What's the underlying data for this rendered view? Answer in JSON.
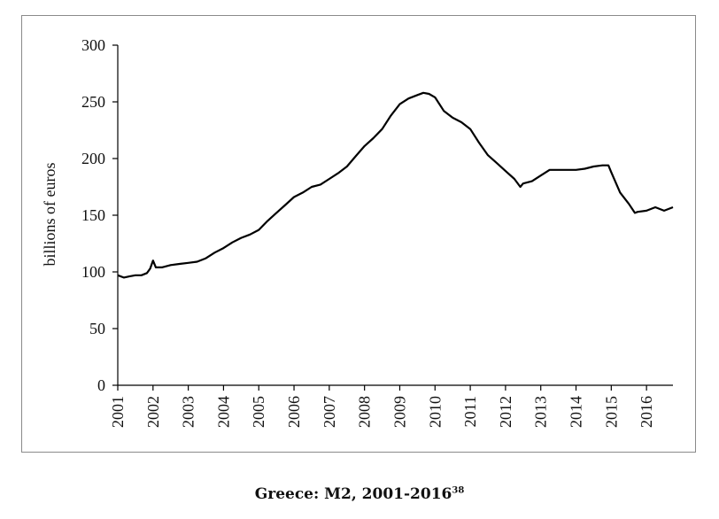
{
  "caption": {
    "title": "Greece: M2, 2001-2016",
    "footnote_marker": "38"
  },
  "chart_data": {
    "type": "line",
    "title": "",
    "xlabel": "",
    "ylabel": "billions of euros",
    "ylim": [
      0,
      300
    ],
    "yticks": [
      0,
      50,
      100,
      150,
      200,
      250,
      300
    ],
    "xlim": [
      2001.0,
      2016.75
    ],
    "xticks": [
      "2001",
      "2002",
      "2003",
      "2004",
      "2005",
      "2006",
      "2007",
      "2008",
      "2009",
      "2010",
      "2011",
      "2012",
      "2013",
      "2014",
      "2015",
      "2016"
    ],
    "grid": false,
    "legend": "none",
    "line_color": "#000000",
    "series": [
      {
        "x": [
          2001.0,
          2001.17,
          2001.33,
          2001.5,
          2001.67,
          2001.83,
          2001.92,
          2002.0,
          2002.08,
          2002.25,
          2002.5,
          2002.75,
          2003.0,
          2003.25,
          2003.5,
          2003.75,
          2004.0,
          2004.25,
          2004.5,
          2004.75,
          2005.0,
          2005.25,
          2005.5,
          2005.75,
          2006.0,
          2006.25,
          2006.5,
          2006.75,
          2007.0,
          2007.25,
          2007.5,
          2007.75,
          2008.0,
          2008.25,
          2008.5,
          2008.75,
          2009.0,
          2009.25,
          2009.5,
          2009.67,
          2009.83,
          2010.0,
          2010.25,
          2010.5,
          2010.75,
          2011.0,
          2011.25,
          2011.5,
          2011.75,
          2012.0,
          2012.25,
          2012.42,
          2012.5,
          2012.75,
          2013.0,
          2013.25,
          2013.5,
          2013.75,
          2014.0,
          2014.25,
          2014.5,
          2014.75,
          2014.92,
          2015.0,
          2015.25,
          2015.5,
          2015.67,
          2015.75,
          2016.0,
          2016.25,
          2016.5,
          2016.75
        ],
        "y": [
          97,
          95,
          96,
          97,
          97,
          99,
          103,
          110,
          104,
          104,
          106,
          107,
          108,
          109,
          112,
          117,
          121,
          126,
          130,
          133,
          137,
          145,
          152,
          159,
          166,
          170,
          175,
          177,
          182,
          187,
          193,
          202,
          211,
          218,
          226,
          238,
          248,
          253,
          256,
          258,
          257,
          254,
          242,
          236,
          232,
          226,
          214,
          203,
          196,
          189,
          182,
          175,
          178,
          180,
          185,
          190,
          190,
          190,
          190,
          191,
          193,
          194,
          194,
          188,
          170,
          160,
          152,
          153,
          154,
          157,
          154,
          157
        ]
      }
    ]
  }
}
